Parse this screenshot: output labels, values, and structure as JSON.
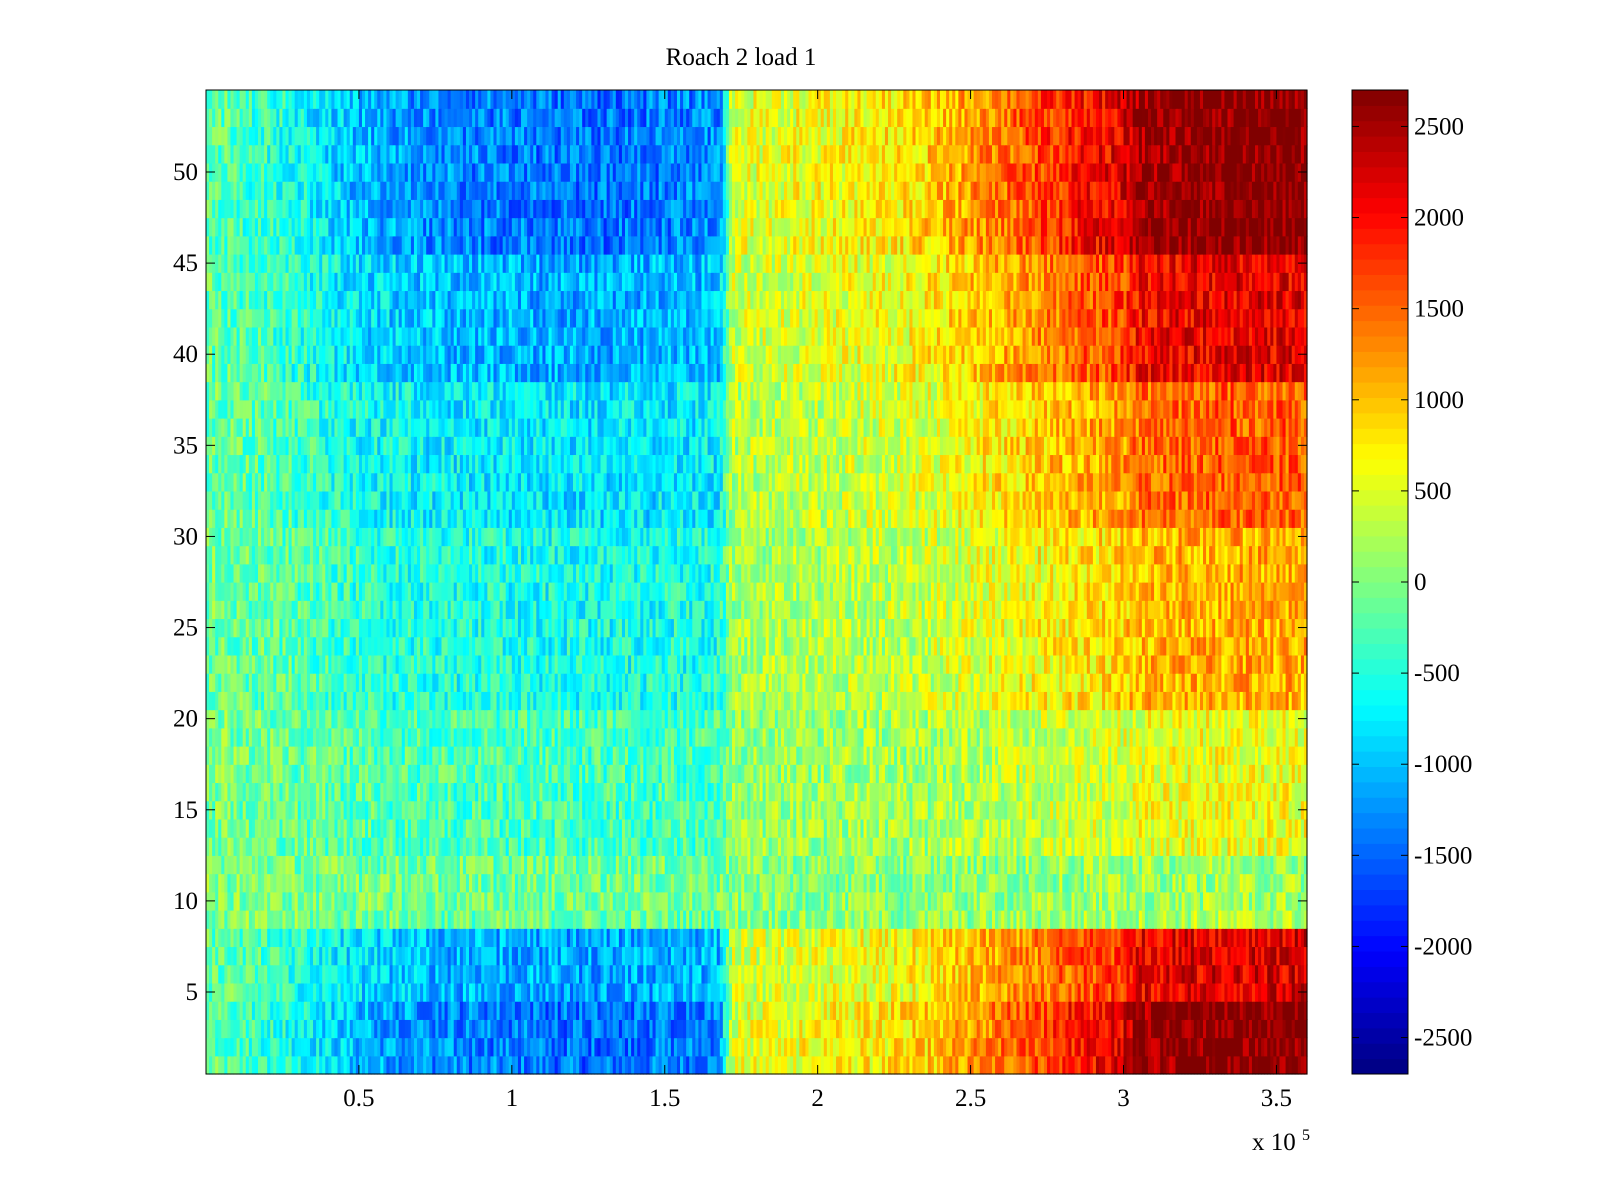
{
  "chart_data": {
    "type": "heatmap",
    "title": "Roach 2 load 1",
    "xlabel": "",
    "ylabel": "",
    "x_exponent_label": {
      "base": "x 10",
      "exponent": "5"
    },
    "xlim": [
      0,
      3.6
    ],
    "ylim": [
      0.5,
      54.5
    ],
    "x_ticks": [
      0.5,
      1,
      1.5,
      2,
      2.5,
      3,
      3.5
    ],
    "x_tick_labels": [
      "0.5",
      "1",
      "1.5",
      "2",
      "2.5",
      "3",
      "3.5"
    ],
    "y_ticks": [
      5,
      10,
      15,
      20,
      25,
      30,
      35,
      40,
      45,
      50
    ],
    "y_tick_labels": [
      "5",
      "10",
      "15",
      "20",
      "25",
      "30",
      "35",
      "40",
      "45",
      "50"
    ],
    "colormap": "jet",
    "clim": [
      -2700,
      2700
    ],
    "colorbar_ticks": [
      2500,
      2000,
      1500,
      1000,
      500,
      0,
      -500,
      -1000,
      -1500,
      -2000,
      -2500
    ],
    "colorbar_tick_labels": [
      "2500",
      "2000",
      "1500",
      "1000",
      "500",
      "0",
      "-500",
      "-1000",
      "-1500",
      "-2000",
      "-2500"
    ],
    "rows": 54,
    "x_profile": {
      "x": [
        0,
        0.25,
        0.5,
        0.75,
        1.0,
        1.25,
        1.5,
        1.68,
        1.72,
        2.0,
        2.3,
        2.5,
        2.7,
        2.85,
        3.0,
        3.05,
        3.3,
        3.6
      ],
      "base": [
        -100,
        -300,
        -650,
        -800,
        -850,
        -900,
        -850,
        -800,
        300,
        400,
        500,
        750,
        1000,
        1200,
        1350,
        1600,
        1700,
        1700
      ]
    },
    "row_weights": [
      {
        "rows": [
          1,
          4
        ],
        "weight": 1.6
      },
      {
        "rows": [
          5,
          8
        ],
        "weight": 1.3
      },
      {
        "rows": [
          9,
          9
        ],
        "weight": 0.15
      },
      {
        "rows": [
          10,
          12
        ],
        "weight": 0.1
      },
      {
        "rows": [
          13,
          20
        ],
        "weight": 0.35
      },
      {
        "rows": [
          21,
          30
        ],
        "weight": 0.65
      },
      {
        "rows": [
          31,
          38
        ],
        "weight": 0.9
      },
      {
        "rows": [
          39,
          45
        ],
        "weight": 1.25
      },
      {
        "rows": [
          46,
          54
        ],
        "weight": 1.6
      }
    ],
    "noise_amplitude": 450,
    "grid": false,
    "legend": "none"
  },
  "colors": {
    "axis": "#000000",
    "background": "#ffffff"
  }
}
